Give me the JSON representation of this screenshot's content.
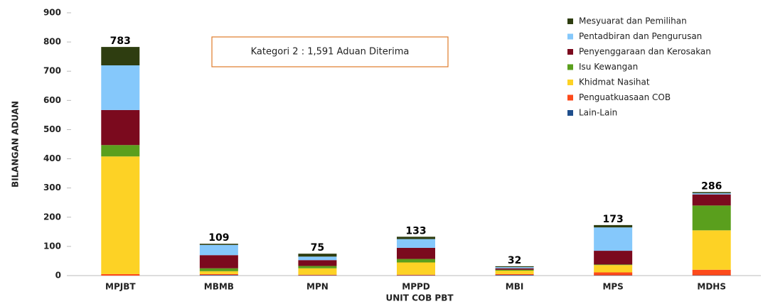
{
  "chart_data": {
    "type": "stacked_bar",
    "annotation": "Kategori 2 : 1,591 Aduan Diterima",
    "x_label": "UNIT COB PBT",
    "y_label": "BILANGAN ADUAN",
    "categories": [
      "MPJBT",
      "MBMB",
      "MPN",
      "MPPD",
      "MBI",
      "MPS",
      "MDHS"
    ],
    "series": [
      {
        "name": "Mesyuarat dan Pemilihan",
        "color": "#2e3d10",
        "values": [
          63,
          4,
          10,
          8,
          3,
          8,
          4
        ]
      },
      {
        "name": "Pentadbiran dan Pengurusan",
        "color": "#85c8fb",
        "values": [
          153,
          35,
          12,
          30,
          4,
          80,
          4
        ]
      },
      {
        "name": "Penyenggaraan dan Kerosakan",
        "color": "#7b0a1e",
        "values": [
          120,
          45,
          20,
          38,
          5,
          47,
          38
        ]
      },
      {
        "name": "Isu Kewangan",
        "color": "#5a9f1d",
        "values": [
          39,
          10,
          8,
          12,
          3,
          2,
          85
        ]
      },
      {
        "name": "Khidmat Nasihat",
        "color": "#fdd225",
        "values": [
          403,
          10,
          22,
          42,
          12,
          25,
          135
        ]
      },
      {
        "name": "Penguatkuasaan COB",
        "color": "#fd4a1b",
        "values": [
          5,
          3,
          2,
          2,
          3,
          10,
          19
        ]
      },
      {
        "name": "Lain-Lain",
        "color": "#1f4e8c",
        "values": [
          0,
          2,
          1,
          1,
          2,
          1,
          1
        ]
      }
    ],
    "totals": [
      783,
      109,
      75,
      133,
      32,
      173,
      286
    ],
    "ylim": [
      0,
      900
    ],
    "yticks": [
      0,
      100,
      200,
      300,
      400,
      500,
      600,
      700,
      800,
      900
    ]
  }
}
